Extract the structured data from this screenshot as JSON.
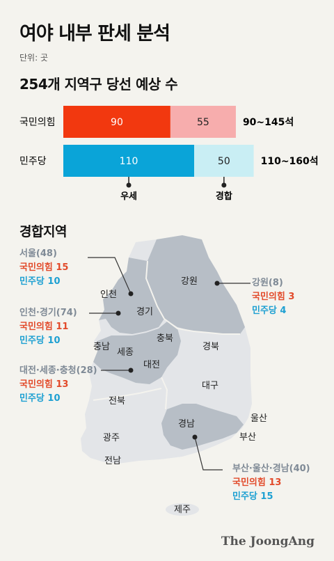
{
  "title": "여야 내부 판세 분석",
  "unit": "단위: 곳",
  "subtitle": "254개 지역구 당선 예상 수",
  "chart_data": {
    "type": "bar",
    "stacked": true,
    "orientation": "horizontal",
    "categories": [
      "국민의힘",
      "민주당"
    ],
    "series": [
      {
        "name": "우세",
        "values": [
          90,
          110
        ]
      },
      {
        "name": "경합",
        "values": [
          55,
          50
        ]
      }
    ],
    "totals_text": [
      "90~145석",
      "110~160석"
    ],
    "colors": {
      "국민의힘": {
        "우세": "#f2380f",
        "경합": "#f7adad"
      },
      "민주당": {
        "우세": "#0aa4d8",
        "경합": "#c9eef4"
      }
    },
    "legend_placement": "below bars"
  },
  "section_title": "경합지역",
  "map_regions": [
    "인천",
    "경기",
    "강원",
    "충북",
    "충남",
    "세종",
    "대전",
    "경북",
    "대구",
    "전북",
    "광주",
    "전남",
    "경남",
    "울산",
    "부산",
    "제주"
  ],
  "callouts": [
    {
      "name": "서울(48)",
      "ppp": "국민의힘 15",
      "dp": "민주당 10"
    },
    {
      "name": "인천·경기(74)",
      "ppp": "국민의힘 11",
      "dp": "민주당 10"
    },
    {
      "name": "대전·세종·충청(28)",
      "ppp": "국민의힘 13",
      "dp": "민주당 10"
    },
    {
      "name": "강원(8)",
      "ppp": "국민의힘 3",
      "dp": "민주당 4"
    },
    {
      "name": "부산·울산·경남(40)",
      "ppp": "국민의힘 13",
      "dp": "민주당 15"
    }
  ],
  "brand": "The JoongAng"
}
